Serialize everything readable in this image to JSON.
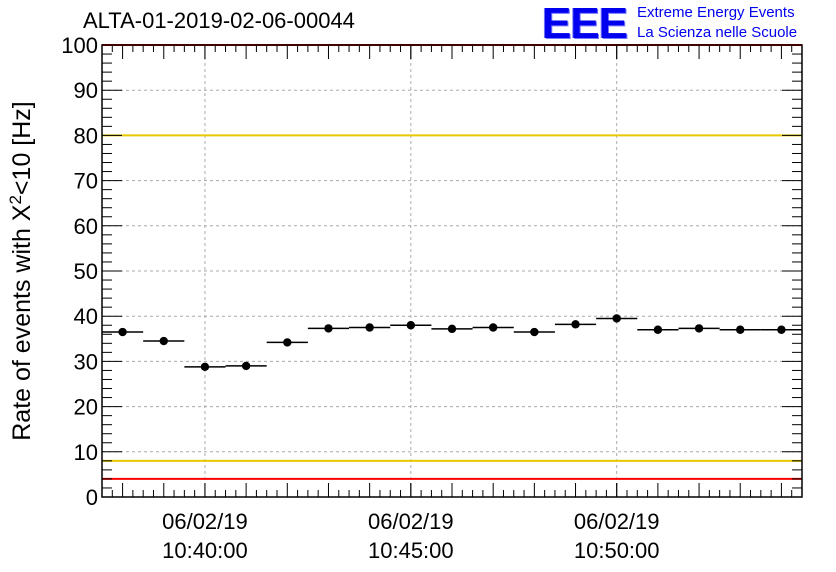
{
  "header": {
    "title": "ALTA-01-2019-02-06-00044",
    "logo_mark": "EEE",
    "logo_line1": "Extreme Energy Events",
    "logo_line2": "La Scienza nelle Scuole"
  },
  "colors": {
    "red_line": "#ff0000",
    "yellow_line": "#e8c800",
    "logo_blue": "#0000ee",
    "grid": "#aaaaaa"
  },
  "chart_data": {
    "type": "scatter",
    "title": "ALTA-01-2019-02-06-00044",
    "ylabel": "Rate of events with X²<10 [Hz]",
    "ylabel_main": "Rate of events with X",
    "ylabel_sup": "2",
    "ylabel_tail": "<10 [Hz]",
    "xlabel": "",
    "ylim": [
      0,
      100
    ],
    "yticks": [
      0,
      10,
      20,
      30,
      40,
      50,
      60,
      70,
      80,
      90,
      100
    ],
    "xlim_minutes": [
      37.5,
      54.5
    ],
    "xtick_labels": [
      {
        "minute": 40,
        "date": "06/02/19",
        "time": "10:40:00"
      },
      {
        "minute": 45,
        "date": "06/02/19",
        "time": "10:45:00"
      },
      {
        "minute": 50,
        "date": "06/02/19",
        "time": "10:50:00"
      }
    ],
    "reference_lines": [
      {
        "value": 100,
        "color": "red"
      },
      {
        "value": 80,
        "color": "yellow"
      },
      {
        "value": 8,
        "color": "yellow"
      },
      {
        "value": 4,
        "color": "red"
      }
    ],
    "grid": true,
    "bin_width_minutes": 1,
    "series": [
      {
        "x_minutes": [
          38,
          39,
          40,
          41,
          42,
          43,
          44,
          45,
          46,
          47,
          48,
          49,
          50,
          51,
          52,
          53,
          54
        ],
        "values": [
          36.5,
          34.5,
          28.8,
          29.0,
          34.2,
          37.3,
          37.5,
          38.0,
          37.2,
          37.5,
          36.5,
          38.2,
          39.5,
          37.0,
          37.3,
          37.0,
          37.0
        ]
      }
    ]
  }
}
